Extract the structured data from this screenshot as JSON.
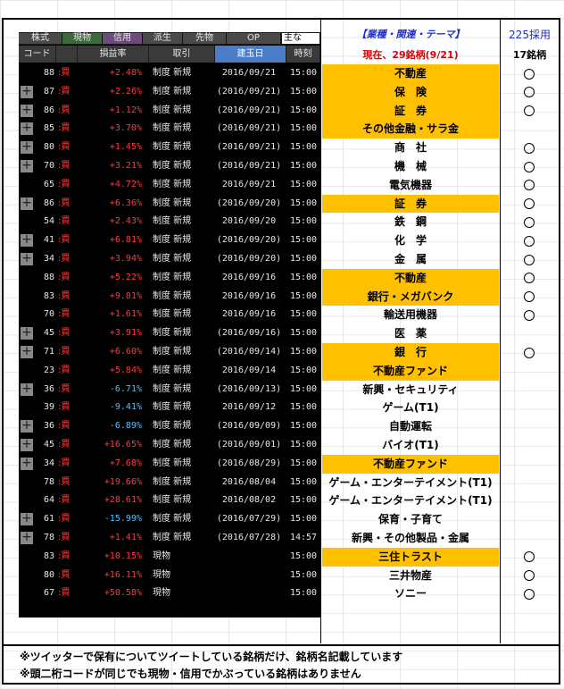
{
  "tabs": [
    "株式",
    "現物",
    "信用",
    "派生",
    "先物",
    "OP",
    "主な"
  ],
  "columns": [
    "コード",
    "損益率",
    "取引",
    "建玉日",
    "時刻"
  ],
  "header": {
    "theme_title": "【業種・関連・テーマ】",
    "status": "現在、29銘柄(9/21)",
    "nikkei_label": "225採用",
    "nikkei_count": "17銘柄"
  },
  "rows": [
    {
      "plus": false,
      "code": "88",
      "type": "買",
      "pct": "+2.48%",
      "sign": "pos",
      "deal": "制度 新規",
      "date": "2016/09/21",
      "time": "15:00",
      "theme": "不動産",
      "hl": true,
      "n225": true
    },
    {
      "plus": true,
      "code": "87",
      "type": "買",
      "pct": "+2.26%",
      "sign": "pos",
      "deal": "制度 新規",
      "date": "(2016/09/21)",
      "time": "15:00",
      "theme": "保　険",
      "hl": true,
      "n225": true
    },
    {
      "plus": true,
      "code": "86",
      "type": "買",
      "pct": "+1.12%",
      "sign": "pos",
      "deal": "制度 新規",
      "date": "(2016/09/21)",
      "time": "15:00",
      "theme": "証　券",
      "hl": true,
      "n225": true
    },
    {
      "plus": true,
      "code": "85",
      "type": "買",
      "pct": "+3.70%",
      "sign": "pos",
      "deal": "制度 新規",
      "date": "(2016/09/21)",
      "time": "15:00",
      "theme": "その他金融・サラ金",
      "hl": true,
      "n225": false
    },
    {
      "plus": true,
      "code": "80",
      "type": "買",
      "pct": "+1.45%",
      "sign": "pos",
      "deal": "制度 新規",
      "date": "(2016/09/21)",
      "time": "15:00",
      "theme": "商　社",
      "hl": false,
      "n225": true
    },
    {
      "plus": true,
      "code": "70",
      "type": "買",
      "pct": "+3.21%",
      "sign": "pos",
      "deal": "制度 新規",
      "date": "(2016/09/21)",
      "time": "15:00",
      "theme": "機　械",
      "hl": false,
      "n225": true
    },
    {
      "plus": false,
      "code": "65",
      "type": "買",
      "pct": "+4.72%",
      "sign": "pos",
      "deal": "制度 新規",
      "date": "2016/09/21",
      "time": "15:00",
      "theme": "電気機器",
      "hl": false,
      "n225": true
    },
    {
      "plus": true,
      "code": "86",
      "type": "買",
      "pct": "+6.36%",
      "sign": "pos",
      "deal": "制度 新規",
      "date": "(2016/09/20)",
      "time": "15:00",
      "theme": "証　券",
      "hl": true,
      "n225": true
    },
    {
      "plus": false,
      "code": "54",
      "type": "買",
      "pct": "+2.43%",
      "sign": "pos",
      "deal": "制度 新規",
      "date": "2016/09/20",
      "time": "15:00",
      "theme": "鉄　鋼",
      "hl": false,
      "n225": true
    },
    {
      "plus": true,
      "code": "41",
      "type": "買",
      "pct": "+6.81%",
      "sign": "pos",
      "deal": "制度 新規",
      "date": "(2016/09/20)",
      "time": "15:00",
      "theme": "化　学",
      "hl": false,
      "n225": true
    },
    {
      "plus": true,
      "code": "34",
      "type": "買",
      "pct": "+3.94%",
      "sign": "pos",
      "deal": "制度 新規",
      "date": "(2016/09/20)",
      "time": "15:00",
      "theme": "金　属",
      "hl": false,
      "n225": true
    },
    {
      "plus": false,
      "code": "88",
      "type": "買",
      "pct": "+5.22%",
      "sign": "pos",
      "deal": "制度 新規",
      "date": "2016/09/16",
      "time": "15:00",
      "theme": "不動産",
      "hl": true,
      "n225": true
    },
    {
      "plus": false,
      "code": "83",
      "type": "買",
      "pct": "+9.01%",
      "sign": "pos",
      "deal": "制度 新規",
      "date": "2016/09/16",
      "time": "15:00",
      "theme": "銀行・メガバンク",
      "hl": true,
      "n225": true
    },
    {
      "plus": false,
      "code": "70",
      "type": "買",
      "pct": "+1.61%",
      "sign": "pos",
      "deal": "制度 新規",
      "date": "2016/09/16",
      "time": "15:00",
      "theme": "輸送用機器",
      "hl": false,
      "n225": true
    },
    {
      "plus": true,
      "code": "45",
      "type": "買",
      "pct": "+3.91%",
      "sign": "pos",
      "deal": "制度 新規",
      "date": "(2016/09/16)",
      "time": "15:00",
      "theme": "医　薬",
      "hl": false,
      "n225": false
    },
    {
      "plus": true,
      "code": "71",
      "type": "買",
      "pct": "+6.60%",
      "sign": "pos",
      "deal": "制度 新規",
      "date": "(2016/09/14)",
      "time": "15:00",
      "theme": "銀　行",
      "hl": true,
      "n225": true
    },
    {
      "plus": false,
      "code": "23",
      "type": "買",
      "pct": "+5.84%",
      "sign": "pos",
      "deal": "制度 新規",
      "date": "2016/09/14",
      "time": "15:00",
      "theme": "不動産ファンド",
      "hl": true,
      "n225": false
    },
    {
      "plus": true,
      "code": "36",
      "type": "買",
      "pct": "-6.71%",
      "sign": "neg",
      "deal": "制度 新規",
      "date": "(2016/09/13)",
      "time": "15:00",
      "theme": "新興・セキュリティ",
      "hl": false,
      "n225": false
    },
    {
      "plus": false,
      "code": "39",
      "type": "買",
      "pct": "-9.41%",
      "sign": "neg",
      "deal": "制度 新規",
      "date": "2016/09/12",
      "time": "15:00",
      "theme": "ゲーム(T1)",
      "hl": false,
      "n225": false
    },
    {
      "plus": true,
      "code": "36",
      "type": "買",
      "pct": "-6.89%",
      "sign": "neg",
      "deal": "制度 新規",
      "date": "(2016/09/09)",
      "time": "15:00",
      "theme": "自動運転",
      "hl": false,
      "n225": false
    },
    {
      "plus": true,
      "code": "45",
      "type": "買",
      "pct": "+16.65%",
      "sign": "pos",
      "deal": "制度 新規",
      "date": "(2016/09/01)",
      "time": "15:00",
      "theme": "バイオ(T1)",
      "hl": false,
      "n225": false
    },
    {
      "plus": true,
      "code": "34",
      "type": "買",
      "pct": "+7.68%",
      "sign": "pos",
      "deal": "制度 新規",
      "date": "(2016/08/29)",
      "time": "15:00",
      "theme": "不動産ファンド",
      "hl": true,
      "n225": false
    },
    {
      "plus": false,
      "code": "78",
      "type": "買",
      "pct": "+19.66%",
      "sign": "pos",
      "deal": "制度 新規",
      "date": "2016/08/04",
      "time": "15:00",
      "theme": "ゲーム・エンターテイメント(T1)",
      "hl": false,
      "n225": false
    },
    {
      "plus": false,
      "code": "64",
      "type": "買",
      "pct": "+28.61%",
      "sign": "pos",
      "deal": "制度 新規",
      "date": "2016/08/02",
      "time": "15:00",
      "theme": "ゲーム・エンターテイメント(T1)",
      "hl": false,
      "n225": false
    },
    {
      "plus": true,
      "code": "61",
      "type": "買",
      "pct": "-15.99%",
      "sign": "neg",
      "deal": "制度 新規",
      "date": "(2016/07/29)",
      "time": "15:00",
      "theme": "保育・子育て",
      "hl": false,
      "n225": false
    },
    {
      "plus": true,
      "code": "78",
      "type": "買",
      "pct": "+1.41%",
      "sign": "pos",
      "deal": "制度 新規",
      "date": "(2016/07/28)",
      "time": "14:57",
      "theme": "新興・その他製品・金属",
      "hl": false,
      "n225": false
    },
    {
      "plus": false,
      "code": "83",
      "type": "買",
      "pct": "+10.15%",
      "sign": "pos",
      "deal": "現物",
      "date": "",
      "time": "15:00",
      "theme": "三住トラスト",
      "hl": true,
      "n225": true
    },
    {
      "plus": false,
      "code": "80",
      "type": "買",
      "pct": "+16.11%",
      "sign": "pos",
      "deal": "現物",
      "date": "",
      "time": "15:00",
      "theme": "三井物産",
      "hl": false,
      "n225": true
    },
    {
      "plus": false,
      "code": "67",
      "type": "買",
      "pct": "+50.58%",
      "sign": "pos",
      "deal": "現物",
      "date": "",
      "time": "15:00",
      "theme": "ソニー",
      "hl": false,
      "n225": true
    }
  ],
  "notes": [
    "※ツイッターで保有についてツイートしている銘柄だけ、銘柄名記載しています",
    "※頭二桁コードが同じでも現物・信用でかぶっている銘柄はありません"
  ],
  "colors": {
    "highlight": "#ffc000",
    "gain": "#ff3b3b",
    "loss": "#4fc2ff",
    "theme_title": "#1e2fc8",
    "status": "#e00000"
  }
}
